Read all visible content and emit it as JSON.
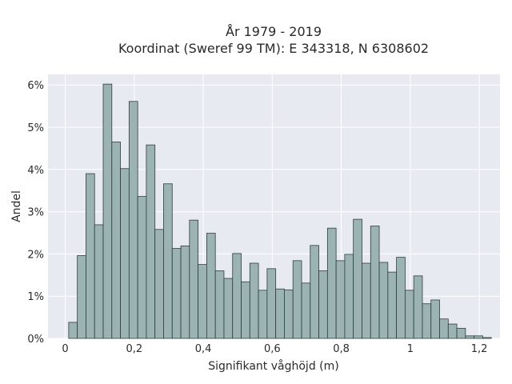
{
  "chart_data": {
    "type": "bar",
    "title_lines": [
      "År 1979 - 2019",
      "Koordinat (Sweref 99 TM): E 343318, N 6308602"
    ],
    "xlabel": "Signifikant våghöjd (m)",
    "ylabel": "Andel",
    "xlim": [
      -0.05,
      1.26
    ],
    "ylim": [
      0,
      6.25
    ],
    "x_ticks": [
      0,
      0.2,
      0.4,
      0.6,
      0.8,
      1,
      1.2
    ],
    "x_tick_labels": [
      "0",
      "0,2",
      "0,4",
      "0,6",
      "0,8",
      "1",
      "1,2"
    ],
    "y_ticks": [
      0,
      1,
      2,
      3,
      4,
      5,
      6
    ],
    "y_tick_labels": [
      "0%",
      "1%",
      "2%",
      "3%",
      "4%",
      "5%",
      "6%"
    ],
    "bin_start": 0.01,
    "bin_width": 0.025,
    "values": [
      0.38,
      1.96,
      3.9,
      2.69,
      6.02,
      4.65,
      4.02,
      5.61,
      3.36,
      4.58,
      2.58,
      3.66,
      2.13,
      2.19,
      2.8,
      1.75,
      2.49,
      1.6,
      1.42,
      2.01,
      1.34,
      1.78,
      1.14,
      1.65,
      1.17,
      1.15,
      1.84,
      1.31,
      2.2,
      1.6,
      2.61,
      1.84,
      1.99,
      2.82,
      1.78,
      2.66,
      1.8,
      1.57,
      1.92,
      1.14,
      1.48,
      0.82,
      0.91,
      0.46,
      0.34,
      0.24,
      0.06,
      0.06,
      0.02
    ],
    "grid": true,
    "colors": {
      "bar_fill": "#9bb3b3",
      "bar_edge": "#2f3d3d",
      "plot_background": "#e8eaf2",
      "grid": "#ffffff"
    }
  }
}
